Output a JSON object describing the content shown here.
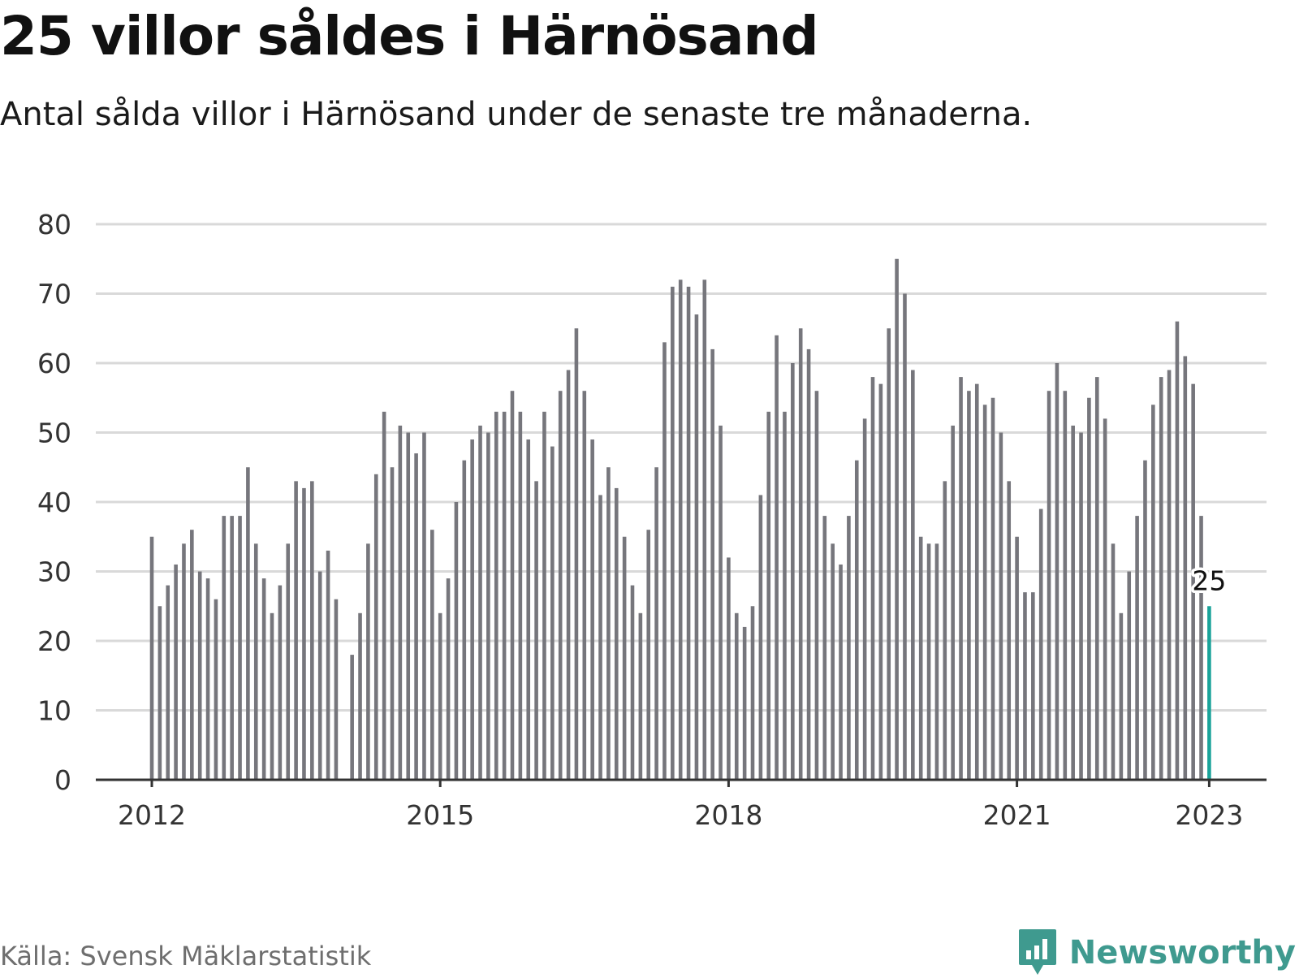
{
  "header": {
    "title": "25 villor såldes i Härnösand",
    "subtitle": "Antal sålda villor i Härnösand under de senaste tre månaderna."
  },
  "footer": {
    "source": "Källa: Svensk Mäklarstatistik",
    "brand": "Newsworthy",
    "brand_icon": "newsworthy-logo-icon"
  },
  "colors": {
    "bar": "#76767c",
    "highlight": "#19a39a",
    "grid": "#d9d9d9",
    "axis": "#333333",
    "brand": "#3f9a8f"
  },
  "chart_data": {
    "type": "bar",
    "x_start": "2012-01",
    "x_ticks": [
      "2012",
      "2015",
      "2018",
      "2021",
      "2023"
    ],
    "y_ticks": [
      0,
      10,
      20,
      30,
      40,
      50,
      60,
      70,
      80
    ],
    "ylim": [
      0,
      80
    ],
    "grid": true,
    "highlight_last": true,
    "last_value_label": "25",
    "values": [
      35,
      25,
      28,
      31,
      34,
      36,
      30,
      29,
      26,
      38,
      38,
      38,
      45,
      34,
      29,
      24,
      28,
      34,
      43,
      42,
      43,
      30,
      33,
      26,
      0,
      18,
      24,
      34,
      44,
      53,
      45,
      51,
      50,
      47,
      50,
      36,
      24,
      29,
      40,
      46,
      49,
      51,
      50,
      53,
      53,
      56,
      53,
      49,
      43,
      53,
      48,
      56,
      59,
      65,
      56,
      49,
      41,
      45,
      42,
      35,
      28,
      24,
      36,
      45,
      63,
      71,
      72,
      71,
      67,
      72,
      62,
      51,
      32,
      24,
      22,
      25,
      41,
      53,
      64,
      53,
      60,
      65,
      62,
      56,
      38,
      34,
      31,
      38,
      46,
      52,
      58,
      57,
      65,
      75,
      70,
      59,
      35,
      34,
      34,
      43,
      51,
      58,
      56,
      57,
      54,
      55,
      50,
      43,
      35,
      27,
      27,
      39,
      56,
      60,
      56,
      51,
      50,
      55,
      58,
      52,
      34,
      24,
      30,
      38,
      46,
      54,
      58,
      59,
      66,
      61,
      57,
      38,
      25
    ]
  }
}
